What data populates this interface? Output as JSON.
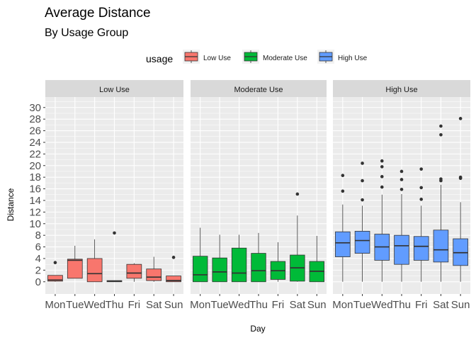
{
  "chart_data": {
    "type": "boxplot",
    "title": "Average Distance",
    "subtitle": "By Usage Group",
    "xlabel": "Day",
    "ylabel": "Distance",
    "categories": [
      "Mon",
      "Tue",
      "Wed",
      "Thu",
      "Fri",
      "Sat",
      "Sun"
    ],
    "yticks": [
      0,
      2,
      4,
      6,
      8,
      10,
      12,
      14,
      16,
      18,
      20,
      22,
      24,
      26,
      28,
      30
    ],
    "ylim": [
      -2.1,
      31.8
    ],
    "grid": true,
    "legend": {
      "title": "usage",
      "position": "top",
      "items": [
        {
          "label": "Low Use",
          "color": "#F8766D"
        },
        {
          "label": "Moderate Use",
          "color": "#00BA38"
        },
        {
          "label": "High Use",
          "color": "#619CFF"
        }
      ]
    },
    "panels": [
      {
        "name": "Low Use",
        "color": "#F8766D",
        "boxes": [
          {
            "day": "Mon",
            "min": 0.0,
            "q1": 0.1,
            "median": 0.3,
            "q3": 1.1,
            "max": 1.1,
            "outliers": [
              3.3
            ]
          },
          {
            "day": "Tue",
            "min": 0.6,
            "q1": 0.6,
            "median": 3.7,
            "q3": 3.9,
            "max": 6.2,
            "outliers": []
          },
          {
            "day": "Wed",
            "min": 0.0,
            "q1": 0.0,
            "median": 1.4,
            "q3": 4.0,
            "max": 7.3,
            "outliers": []
          },
          {
            "day": "Thu",
            "min": 0.0,
            "q1": 0.0,
            "median": 0.1,
            "q3": 0.2,
            "max": 0.2,
            "outliers": [
              8.4
            ]
          },
          {
            "day": "Fri",
            "min": 0.0,
            "q1": 0.6,
            "median": 1.5,
            "q3": 3.0,
            "max": 3.2,
            "outliers": []
          },
          {
            "day": "Sat",
            "min": 0.0,
            "q1": 0.2,
            "median": 0.8,
            "q3": 2.2,
            "max": 4.3,
            "outliers": []
          },
          {
            "day": "Sun",
            "min": 0.0,
            "q1": 0.0,
            "median": 0.2,
            "q3": 1.0,
            "max": 1.0,
            "outliers": [
              4.2
            ]
          }
        ]
      },
      {
        "name": "Moderate Use",
        "color": "#00BA38",
        "boxes": [
          {
            "day": "Mon",
            "min": 0.0,
            "q1": 0.0,
            "median": 1.2,
            "q3": 4.4,
            "max": 9.3,
            "outliers": []
          },
          {
            "day": "Tue",
            "min": 0.0,
            "q1": 0.0,
            "median": 1.7,
            "q3": 4.1,
            "max": 8.1,
            "outliers": []
          },
          {
            "day": "Wed",
            "min": 0.0,
            "q1": 0.0,
            "median": 1.5,
            "q3": 5.8,
            "max": 8.1,
            "outliers": []
          },
          {
            "day": "Thu",
            "min": 0.0,
            "q1": 0.0,
            "median": 1.9,
            "q3": 4.9,
            "max": 8.4,
            "outliers": []
          },
          {
            "day": "Fri",
            "min": 0.0,
            "q1": 0.4,
            "median": 1.9,
            "q3": 3.5,
            "max": 6.8,
            "outliers": []
          },
          {
            "day": "Sat",
            "min": 0.0,
            "q1": 0.1,
            "median": 2.4,
            "q3": 4.6,
            "max": 11.4,
            "outliers": [
              15.1
            ]
          },
          {
            "day": "Sun",
            "min": 0.0,
            "q1": 0.0,
            "median": 1.8,
            "q3": 3.5,
            "max": 7.9,
            "outliers": []
          }
        ]
      },
      {
        "name": "High Use",
        "color": "#619CFF",
        "boxes": [
          {
            "day": "Mon",
            "min": 0.0,
            "q1": 4.3,
            "median": 6.7,
            "q3": 8.6,
            "max": 13.3,
            "outliers": [
              15.6,
              18.3
            ]
          },
          {
            "day": "Tue",
            "min": 0.0,
            "q1": 4.9,
            "median": 7.1,
            "q3": 8.7,
            "max": 13.1,
            "outliers": [
              14.1,
              17.4,
              20.4
            ]
          },
          {
            "day": "Wed",
            "min": 0.0,
            "q1": 3.7,
            "median": 6.0,
            "q3": 8.2,
            "max": 15.0,
            "outliers": [
              16.3,
              18.1,
              19.8,
              20.8
            ]
          },
          {
            "day": "Thu",
            "min": 0.0,
            "q1": 3.0,
            "median": 6.2,
            "q3": 8.0,
            "max": 15.1,
            "outliers": [
              15.9,
              17.6,
              19.0
            ]
          },
          {
            "day": "Fri",
            "min": 0.0,
            "q1": 3.7,
            "median": 6.1,
            "q3": 7.8,
            "max": 13.1,
            "outliers": [
              14.2,
              16.2,
              19.4
            ]
          },
          {
            "day": "Sat",
            "min": 0.0,
            "q1": 3.4,
            "median": 5.5,
            "q3": 8.9,
            "max": 16.7,
            "outliers": [
              17.4,
              17.7,
              25.3,
              26.8
            ]
          },
          {
            "day": "Sun",
            "min": 0.0,
            "q1": 2.8,
            "median": 5.0,
            "q3": 7.4,
            "max": 13.7,
            "outliers": [
              17.8,
              18.0,
              28.1
            ]
          }
        ]
      }
    ]
  }
}
